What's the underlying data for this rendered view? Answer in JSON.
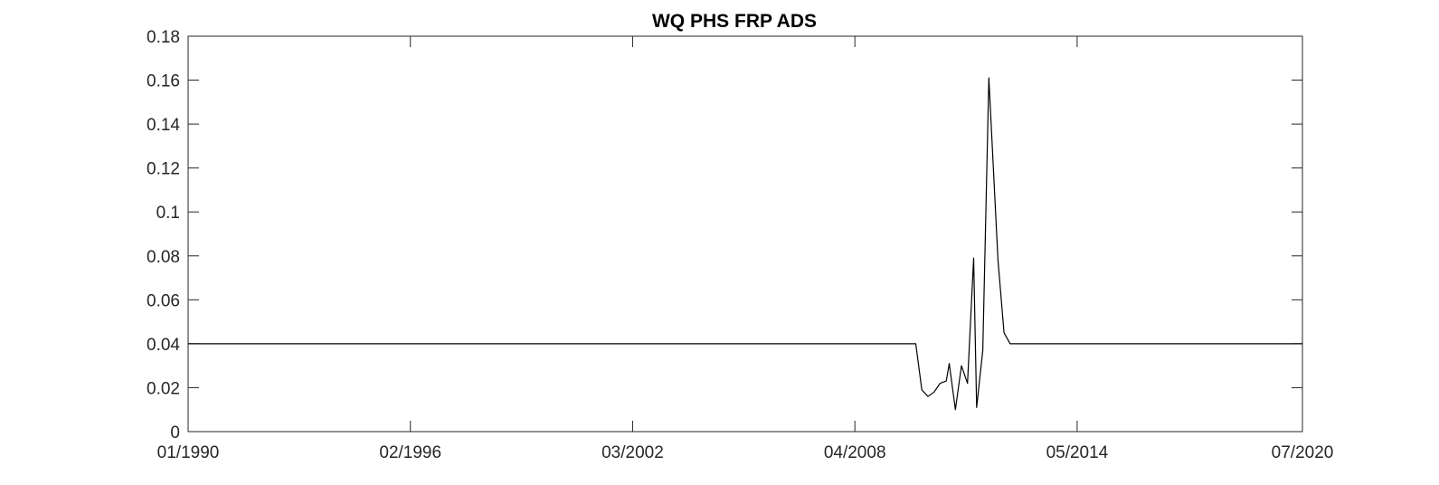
{
  "chart_data": {
    "type": "line",
    "title": "WQ PHS FRP ADS",
    "xlabel": "",
    "ylabel": "",
    "x_axis": "date",
    "xlim": [
      "1990-01",
      "2020-07"
    ],
    "ylim": [
      0,
      0.18
    ],
    "grid": false,
    "line_color": "#000000",
    "x_ticks": [
      {
        "date": "1990-01",
        "label": "01/1990"
      },
      {
        "date": "1996-02",
        "label": "02/1996"
      },
      {
        "date": "2002-03",
        "label": "03/2002"
      },
      {
        "date": "2008-04",
        "label": "04/2008"
      },
      {
        "date": "2014-05",
        "label": "05/2014"
      },
      {
        "date": "2020-07",
        "label": "07/2020"
      }
    ],
    "y_ticks": [
      {
        "value": 0,
        "label": "0"
      },
      {
        "value": 0.02,
        "label": "0.02"
      },
      {
        "value": 0.04,
        "label": "0.04"
      },
      {
        "value": 0.06,
        "label": "0.06"
      },
      {
        "value": 0.08,
        "label": "0.08"
      },
      {
        "value": 0.1,
        "label": "0.1"
      },
      {
        "value": 0.12,
        "label": "0.12"
      },
      {
        "value": 0.14,
        "label": "0.14"
      },
      {
        "value": 0.16,
        "label": "0.16"
      },
      {
        "value": 0.18,
        "label": "0.18"
      }
    ],
    "series": [
      {
        "x": [
          "1990-01",
          "2009-12",
          "2010-02",
          "2010-04",
          "2010-06",
          "2010-08",
          "2010-10",
          "2010-11",
          "2011-01",
          "2011-03",
          "2011-05",
          "2011-07",
          "2011-08",
          "2011-10",
          "2011-12",
          "2012-03",
          "2012-05",
          "2012-07",
          "2012-09",
          "2020-07"
        ],
        "y": [
          0.04,
          0.04,
          0.019,
          0.016,
          0.018,
          0.022,
          0.023,
          0.031,
          0.01,
          0.03,
          0.022,
          0.079,
          0.011,
          0.037,
          0.161,
          0.078,
          0.045,
          0.04,
          0.04,
          0.04
        ]
      }
    ]
  }
}
